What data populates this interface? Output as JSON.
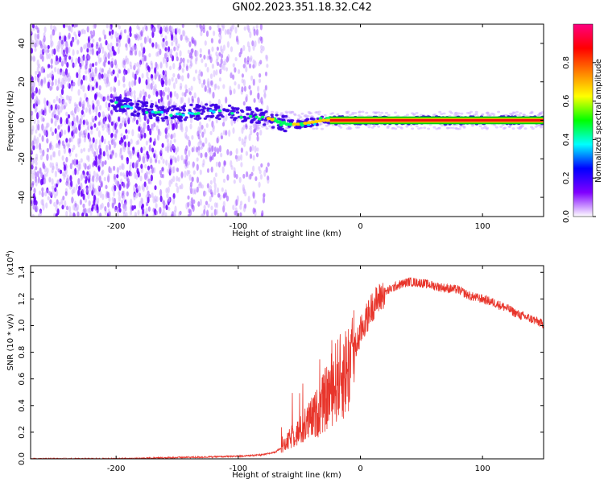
{
  "title": "GN02.2023.351.18.32.C42",
  "chart_data": [
    {
      "type": "heatmap",
      "title": "GN02.2023.351.18.32.C42",
      "xlabel": "Height of straight line (km)",
      "ylabel": "Frequency (Hz)",
      "xlim": [
        -270,
        150
      ],
      "ylim": [
        -50,
        50
      ],
      "x_ticks": [
        -200,
        -100,
        0,
        100
      ],
      "y_ticks": [
        -40,
        -20,
        0,
        20,
        40
      ],
      "grid": false,
      "colorbar": {
        "label": "Normalized spectral amplitude",
        "range": [
          0,
          1
        ],
        "ticks": [
          "0.0",
          "0.2",
          "0.4",
          "0.6",
          "0.8"
        ],
        "colors": [
          "#ffffff",
          "#8000ff",
          "#0000ff",
          "#00ffff",
          "#00ff00",
          "#ffff00",
          "#ff8000",
          "#ff0000",
          "#ff0080"
        ]
      },
      "noise_region": {
        "x": [
          -270,
          -85
        ],
        "freq": [
          -50,
          50
        ]
      },
      "ridge": {
        "x": [
          -205,
          -180,
          -160,
          -140,
          -120,
          -100,
          -80,
          -70,
          -60,
          -50,
          -40,
          -30,
          -20,
          0,
          50,
          100,
          150
        ],
        "freq": [
          9,
          6,
          3,
          4,
          5,
          3,
          2,
          0,
          -2,
          -2,
          -1,
          0,
          0,
          0,
          0,
          0,
          0
        ],
        "amplitude": [
          0.45,
          0.35,
          0.45,
          0.5,
          0.55,
          0.6,
          0.7,
          0.72,
          0.6,
          0.55,
          0.55,
          0.7,
          0.85,
          0.9,
          0.9,
          0.9,
          0.9
        ]
      }
    },
    {
      "type": "line",
      "xlabel": "Height of straight line (km)",
      "ylabel": "SNR (10 * v/v)",
      "y_multiplier": "(x10",
      "y_multiplier_exp": "4",
      "y_multiplier_close": ")",
      "xlim": [
        -270,
        150
      ],
      "ylim": [
        0,
        1.45
      ],
      "x_ticks": [
        -200,
        -100,
        0,
        100
      ],
      "y_ticks": [
        "0.0",
        "0.2",
        "0.4",
        "0.6",
        "0.8",
        "1.0",
        "1.2",
        "1.4"
      ],
      "grid": false,
      "series": [
        {
          "color": "#e8352b",
          "x": [
            -270,
            -200,
            -150,
            -120,
            -100,
            -80,
            -70,
            -62,
            -55,
            -50,
            -45,
            -40,
            -35,
            -30,
            -25,
            -20,
            -15,
            -10,
            -5,
            0,
            5,
            10,
            20,
            30,
            40,
            50,
            60,
            70,
            80,
            90,
            100,
            110,
            120,
            130,
            140,
            150
          ],
          "y": [
            0.0,
            0.0,
            0.01,
            0.015,
            0.02,
            0.03,
            0.05,
            0.1,
            0.18,
            0.2,
            0.25,
            0.3,
            0.35,
            0.42,
            0.5,
            0.58,
            0.62,
            0.68,
            0.8,
            0.95,
            1.05,
            1.15,
            1.25,
            1.3,
            1.33,
            1.32,
            1.3,
            1.28,
            1.27,
            1.22,
            1.2,
            1.17,
            1.13,
            1.08,
            1.05,
            1.01
          ]
        }
      ]
    }
  ]
}
